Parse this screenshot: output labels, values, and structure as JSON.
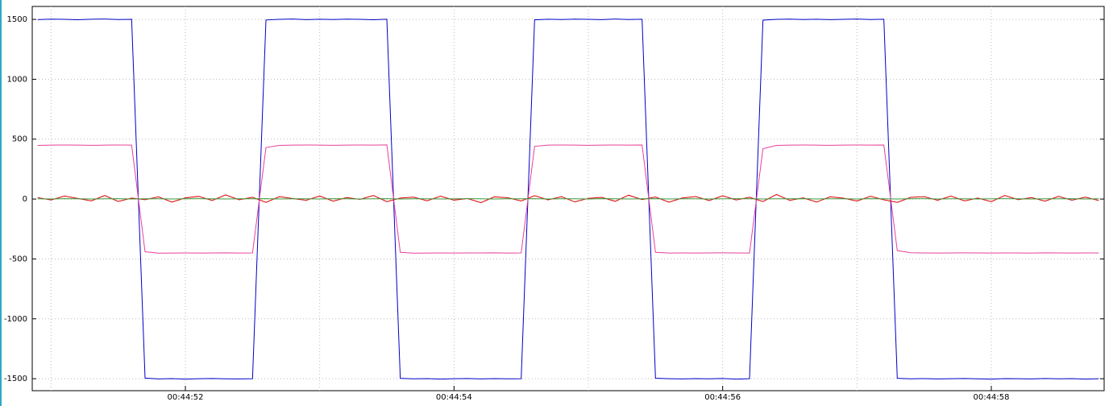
{
  "chart_data": {
    "type": "line",
    "x": [
      50.9,
      51.0,
      51.1,
      51.2,
      51.3,
      51.4,
      51.5,
      51.6,
      51.7,
      51.8,
      51.9,
      52.0,
      52.1,
      52.2,
      52.3,
      52.4,
      52.5,
      52.6,
      52.7,
      52.8,
      52.9,
      53.0,
      53.1,
      53.2,
      53.3,
      53.4,
      53.5,
      53.6,
      53.7,
      53.8,
      53.9,
      54.0,
      54.1,
      54.2,
      54.3,
      54.4,
      54.5,
      54.6,
      54.7,
      54.8,
      54.9,
      55.0,
      55.1,
      55.2,
      55.3,
      55.4,
      55.5,
      55.6,
      55.7,
      55.8,
      55.9,
      56.0,
      56.1,
      56.2,
      56.3,
      56.4,
      56.5,
      56.6,
      56.7,
      56.8,
      56.9,
      57.0,
      57.1,
      57.2,
      57.3,
      57.4,
      57.5,
      57.6,
      57.7,
      57.8,
      57.9,
      58.0,
      58.1,
      58.2,
      58.3,
      58.4,
      58.5,
      58.6,
      58.7,
      58.8
    ],
    "series": [
      {
        "color": "#0000c8",
        "values": [
          1498,
          1502,
          1500,
          1497,
          1501,
          1503,
          1499,
          1500,
          -1495,
          -1502,
          -1499,
          -1503,
          -1500,
          -1498,
          -1501,
          -1502,
          -1500,
          1495,
          1500,
          1503,
          1498,
          1501,
          1499,
          1502,
          1500,
          1497,
          1501,
          -1497,
          -1501,
          -1499,
          -1503,
          -1500,
          -1498,
          -1502,
          -1499,
          -1501,
          -1500,
          1496,
          1501,
          1499,
          1502,
          1500,
          1498,
          1503,
          1499,
          1501,
          -1496,
          -1500,
          -1502,
          -1499,
          -1501,
          -1498,
          -1503,
          -1500,
          1494,
          1500,
          1502,
          1499,
          1501,
          1498,
          1500,
          1503,
          1499,
          1501,
          -1497,
          -1501,
          -1499,
          -1502,
          -1500,
          -1498,
          -1501,
          -1503,
          -1499,
          -1500,
          -1502,
          -1498,
          -1501,
          -1499,
          -1503,
          -1500
        ]
      },
      {
        "color": "#e8409c",
        "values": [
          448,
          450,
          451,
          450,
          449,
          450,
          451,
          450,
          -440,
          -452,
          -451,
          -450,
          -451,
          -450,
          -449,
          -451,
          -450,
          430,
          448,
          450,
          451,
          450,
          449,
          450,
          451,
          450,
          452,
          -445,
          -452,
          -451,
          -450,
          -451,
          -450,
          -450,
          -449,
          -451,
          -450,
          440,
          450,
          451,
          450,
          449,
          450,
          451,
          450,
          451,
          -445,
          -451,
          -450,
          -451,
          -450,
          -449,
          -450,
          -451,
          420,
          448,
          450,
          451,
          450,
          449,
          450,
          451,
          450,
          451,
          -430,
          -448,
          -450,
          -451,
          -450,
          -449,
          -450,
          -451,
          -450,
          -450,
          -451,
          -449,
          -450,
          -451,
          -450,
          -450
        ]
      },
      {
        "color": "#d80000",
        "values": [
          12,
          -8,
          25,
          5,
          -15,
          30,
          -20,
          8,
          -5,
          18,
          -25,
          10,
          22,
          -12,
          35,
          -6,
          15,
          -28,
          20,
          4,
          -10,
          26,
          -18,
          12,
          -3,
          30,
          -22,
          8,
          16,
          -14,
          24,
          -9,
          5,
          -30,
          18,
          11,
          -16,
          28,
          -7,
          20,
          -24,
          6,
          14,
          -19,
          32,
          -4,
          17,
          -26,
          9,
          21,
          -13,
          27,
          -8,
          15,
          -21,
          38,
          -11,
          10,
          -25,
          19,
          7,
          -17,
          23,
          -6,
          -28,
          14,
          20,
          -10,
          25,
          -15,
          8,
          -22,
          30,
          -5,
          12,
          -18,
          22,
          -9,
          16,
          -12
        ]
      },
      {
        "color": "#3c9a3c",
        "values": [
          2,
          1,
          3,
          2,
          1,
          2,
          3,
          1,
          2,
          2,
          1,
          2,
          3,
          2,
          1,
          2,
          2,
          3,
          1,
          2,
          2,
          1,
          3,
          2,
          1,
          2,
          3,
          1,
          2,
          2,
          1,
          2,
          3,
          2,
          1,
          2,
          2,
          3,
          1,
          2,
          2,
          1,
          3,
          2,
          1,
          2,
          3,
          1,
          2,
          2,
          1,
          2,
          3,
          2,
          1,
          2,
          2,
          3,
          1,
          2,
          2,
          1,
          3,
          2,
          1,
          2,
          3,
          1,
          2,
          2,
          1,
          2,
          3,
          2,
          1,
          2,
          2,
          3,
          1,
          2
        ]
      }
    ],
    "xlim": [
      50.86,
      58.84
    ],
    "xticks": [
      {
        "value": 52,
        "label": "00:44:52"
      },
      {
        "value": 54,
        "label": "00:44:54"
      },
      {
        "value": 56,
        "label": "00:44:56"
      },
      {
        "value": 58,
        "label": "00:44:58"
      }
    ],
    "xgrid": [
      51,
      52,
      53,
      54,
      55,
      56,
      57,
      58
    ],
    "ylim": [
      -1600,
      1608
    ],
    "yticks": [
      -1500,
      -1000,
      -500,
      0,
      500,
      1000,
      1500
    ],
    "grid": true
  }
}
